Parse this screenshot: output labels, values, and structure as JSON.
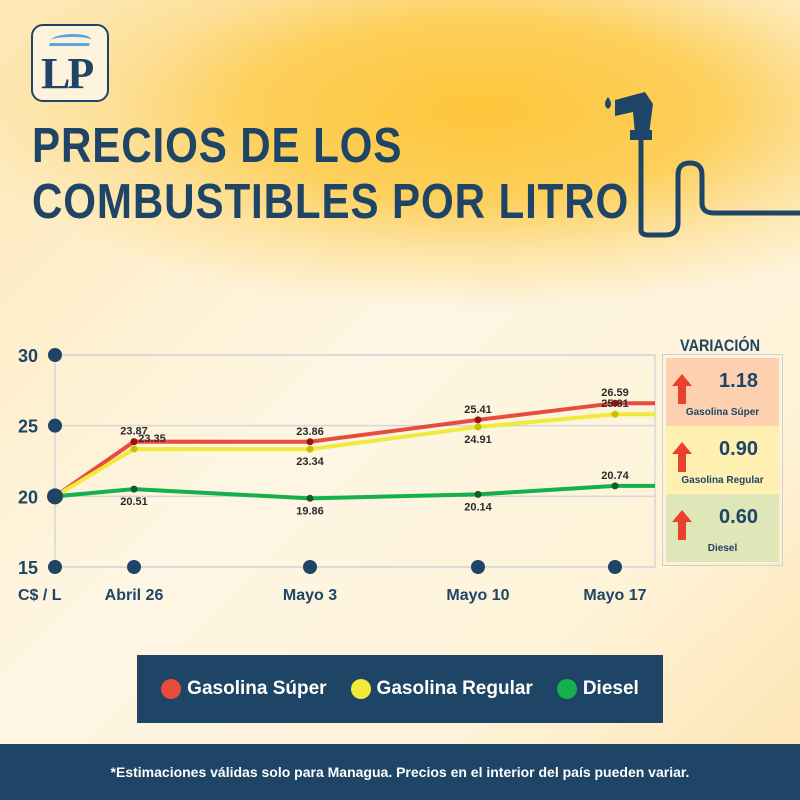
{
  "logo": {
    "text": "LP"
  },
  "title": {
    "line1": "PRECIOS DE LOS",
    "line2": "COMBUSTIBLES POR LITRO"
  },
  "colors": {
    "navy": "#1e4566",
    "super": "#e84c3d",
    "regular": "#f0ea3a",
    "diesel": "#14b04c",
    "arrow": "#e8422f"
  },
  "chart_data": {
    "type": "line",
    "ylabel": "C$ / L",
    "ylim": [
      15,
      30
    ],
    "yticks": [
      "15",
      "20",
      "25",
      "30"
    ],
    "categories": [
      "Abril 26",
      "Mayo 3",
      "Mayo 10",
      "Mayo 17"
    ],
    "origin_value": 20,
    "grid": true,
    "series": [
      {
        "name": "Gasolina Súper",
        "color": "#e84c3d",
        "values": [
          23.87,
          23.86,
          25.41,
          26.59
        ],
        "labels": [
          "23.87",
          "23.86",
          "25.41",
          "26.59"
        ]
      },
      {
        "name": "Gasolina Regular",
        "color": "#f0ea3a",
        "values": [
          23.35,
          23.34,
          24.91,
          25.81
        ],
        "labels": [
          "23.35",
          "23.34",
          "24.91",
          "25.81"
        ]
      },
      {
        "name": "Diesel",
        "color": "#14b04c",
        "values": [
          20.51,
          19.86,
          20.14,
          20.74
        ],
        "labels": [
          "20.51",
          "19.86",
          "20.14",
          "20.74"
        ]
      }
    ]
  },
  "variation": {
    "title": "VARIACIÓN",
    "items": [
      {
        "value": "1.18",
        "name": "Gasolina Súper",
        "bg": "#fdd0b0",
        "icon": "arrow-up-icon"
      },
      {
        "value": "0.90",
        "name": "Gasolina Regular",
        "bg": "#fdf0b0",
        "icon": "arrow-up-icon"
      },
      {
        "value": "0.60",
        "name": "Diesel",
        "bg": "#dfe6b8",
        "icon": "arrow-up-icon"
      }
    ]
  },
  "legend": [
    "Gasolina Súper",
    "Gasolina Regular",
    "Diesel"
  ],
  "footer": "*Estimaciones válidas solo para Managua. Precios en el interior del país pueden variar."
}
